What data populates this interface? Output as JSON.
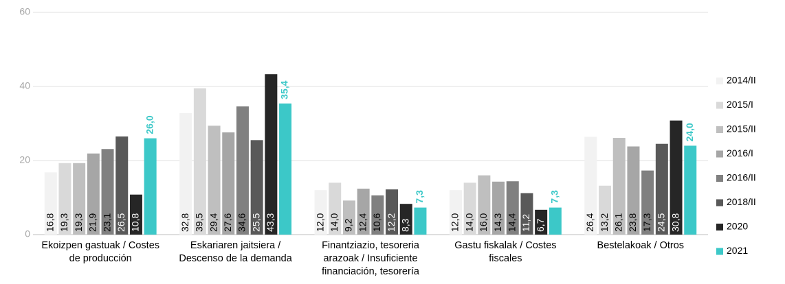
{
  "chart_data": {
    "type": "bar",
    "categories": [
      "Ekoizpen gastuak / Costes de producción",
      "Eskariaren jaitsiera / Descenso de la demanda",
      "Finantziazio, tesoreria arazoak / Insuficiente financiación, tesorería",
      "Gastu fiskalak / Costes fiscales",
      "Bestelakoak / Otros"
    ],
    "series": [
      {
        "name": "2014/II",
        "color": "#f2f2f2",
        "values": [
          16.8,
          32.8,
          12.0,
          12.0,
          26.4
        ],
        "value_labels": [
          "16,8",
          "32,8",
          "12,0",
          "12,0",
          "26,4"
        ]
      },
      {
        "name": "2015/I",
        "color": "#d9d9d9",
        "values": [
          19.3,
          39.5,
          14.0,
          14.0,
          13.2
        ],
        "value_labels": [
          "19,3",
          "39,5",
          "14,0",
          "14,0",
          "13,2"
        ]
      },
      {
        "name": "2015/II",
        "color": "#bfbfbf",
        "values": [
          19.3,
          29.4,
          9.2,
          16.0,
          26.1
        ],
        "value_labels": [
          "19,3",
          "29,4",
          "9,2",
          "16,0",
          "26,1"
        ]
      },
      {
        "name": "2016/I",
        "color": "#a6a6a6",
        "values": [
          21.9,
          27.6,
          12.4,
          14.3,
          23.8
        ],
        "value_labels": [
          "21,9",
          "27,6",
          "12,4",
          "14,3",
          "23,8"
        ]
      },
      {
        "name": "2016/II",
        "color": "#808080",
        "values": [
          23.1,
          34.6,
          10.6,
          14.4,
          17.3
        ],
        "value_labels": [
          "23,1",
          "34,6",
          "10,6",
          "14,4",
          "17,3"
        ]
      },
      {
        "name": "2018/II",
        "color": "#595959",
        "values": [
          26.5,
          25.5,
          12.2,
          11.2,
          24.5
        ],
        "value_labels": [
          "26,5",
          "25,5",
          "12,2",
          "11,2",
          "24,5"
        ]
      },
      {
        "name": "2020",
        "color": "#262626",
        "values": [
          10.8,
          43.3,
          8.3,
          6.7,
          30.8
        ],
        "value_labels": [
          "10,8",
          "43,3",
          "8,3",
          "6,7",
          "30,8"
        ]
      },
      {
        "name": "2021",
        "color": "#3cc8c8",
        "values": [
          26.0,
          35.4,
          7.3,
          7.3,
          24.0
        ],
        "value_labels": [
          "26,0",
          "35,4",
          "7,3",
          "7,3",
          "24,0"
        ]
      }
    ],
    "ylim": [
      0,
      60
    ],
    "yticks": [
      0,
      20,
      40,
      60
    ],
    "grid": true,
    "legend": "right"
  }
}
